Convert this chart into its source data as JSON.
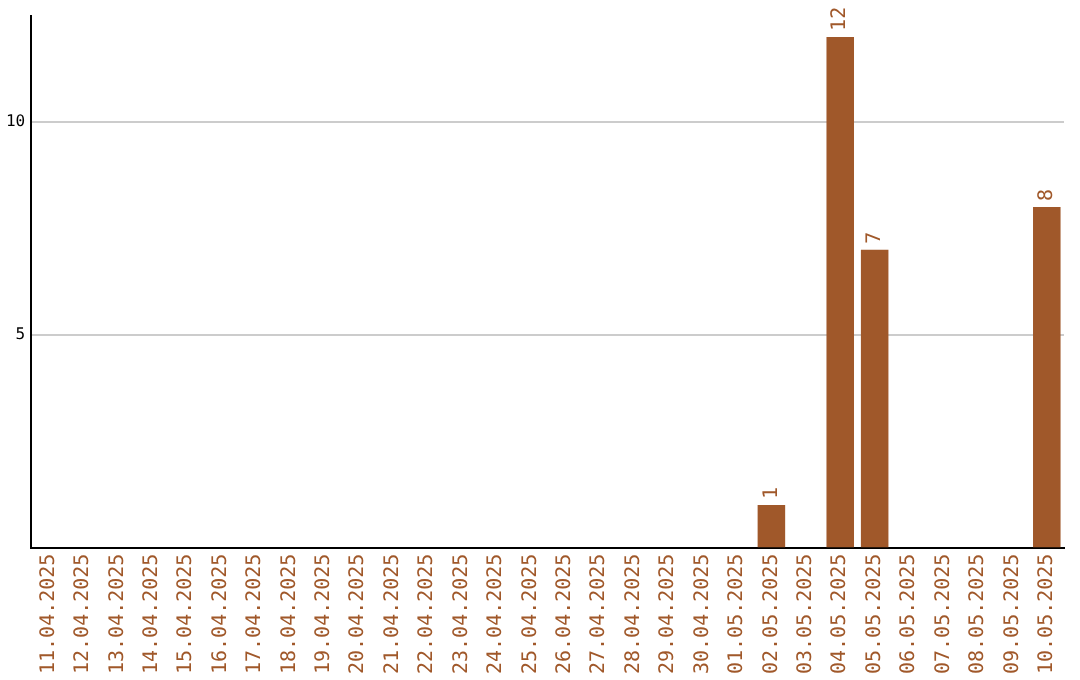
{
  "chart_data": {
    "type": "bar",
    "categories": [
      "11.04.2025",
      "12.04.2025",
      "13.04.2025",
      "14.04.2025",
      "15.04.2025",
      "16.04.2025",
      "17.04.2025",
      "18.04.2025",
      "19.04.2025",
      "20.04.2025",
      "21.04.2025",
      "22.04.2025",
      "23.04.2025",
      "24.04.2025",
      "25.04.2025",
      "26.04.2025",
      "27.04.2025",
      "28.04.2025",
      "29.04.2025",
      "30.04.2025",
      "01.05.2025",
      "02.05.2025",
      "03.05.2025",
      "04.05.2025",
      "05.05.2025",
      "06.05.2025",
      "07.05.2025",
      "08.05.2025",
      "09.05.2025",
      "10.05.2025"
    ],
    "values": [
      0,
      0,
      0,
      0,
      0,
      0,
      0,
      0,
      0,
      0,
      0,
      0,
      0,
      0,
      0,
      0,
      0,
      0,
      0,
      0,
      0,
      1,
      0,
      12,
      7,
      0,
      0,
      0,
      0,
      8
    ],
    "value_labels": [
      null,
      null,
      null,
      null,
      null,
      null,
      null,
      null,
      null,
      null,
      null,
      null,
      null,
      null,
      null,
      null,
      null,
      null,
      null,
      null,
      null,
      "1",
      null,
      "12",
      "7",
      null,
      null,
      null,
      null,
      "8"
    ],
    "color": "#a0582a",
    "ylim": [
      0,
      12.5
    ],
    "yticks": [
      5,
      10
    ],
    "grid": "y",
    "legend": false
  }
}
